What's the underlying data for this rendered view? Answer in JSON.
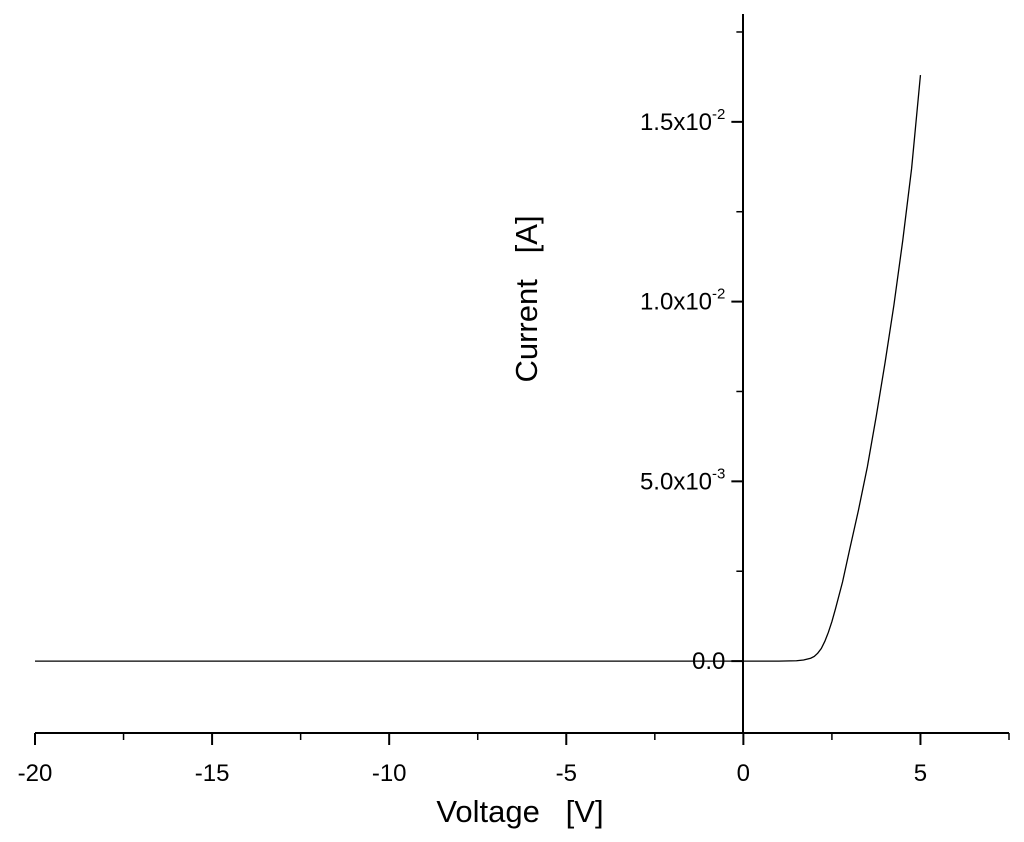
{
  "chart_data": {
    "type": "line",
    "xlabel": "Voltage   [V]",
    "ylabel": "Current   [A]",
    "xlim": [
      -20,
      7.5
    ],
    "ylim": [
      -0.002,
      0.018
    ],
    "x_ticks": [
      -20,
      -15,
      -10,
      -5,
      0,
      5
    ],
    "x_tick_labels": [
      "-20",
      "-15",
      "-10",
      "-5",
      "0",
      "5"
    ],
    "y_ticks": [
      0,
      0.005,
      0.01,
      0.015
    ],
    "y_tick_labels": [
      {
        "mantissa": "0.0",
        "exponent": ""
      },
      {
        "mantissa": "5.0x10",
        "exponent": "-3"
      },
      {
        "mantissa": "1.0x10",
        "exponent": "-2"
      },
      {
        "mantissa": "1.5x10",
        "exponent": "-2"
      }
    ],
    "grid": false,
    "line_color": "#000000",
    "series": [
      {
        "x": [
          -20,
          -10,
          0,
          1.0,
          1.5,
          1.7,
          1.9,
          2.0,
          2.1,
          2.2,
          2.3,
          2.4,
          2.5,
          2.6,
          2.8,
          3.0,
          3.25,
          3.5,
          3.75,
          4.0,
          4.25,
          4.5,
          4.75,
          5.0
        ],
        "y": [
          0,
          0,
          0,
          0,
          1e-05,
          3e-05,
          8e-05,
          0.00013,
          0.00022,
          0.00035,
          0.00055,
          0.0008,
          0.0011,
          0.00145,
          0.0022,
          0.0031,
          0.0042,
          0.0054,
          0.0068,
          0.0083,
          0.0099,
          0.0117,
          0.0137,
          0.0163
        ]
      }
    ]
  }
}
